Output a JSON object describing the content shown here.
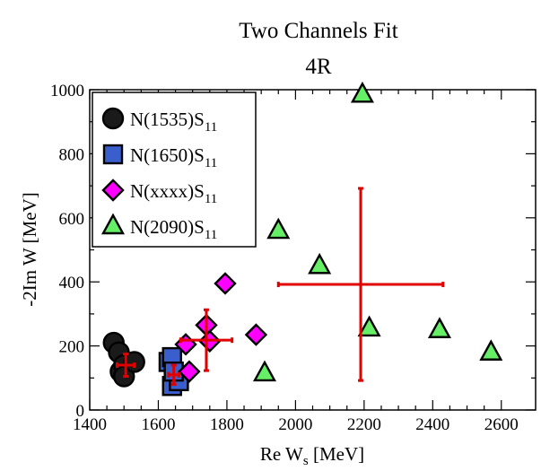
{
  "chart_data": {
    "type": "scatter",
    "title": "Two Channels Fit",
    "subtitle": "4R",
    "xlabel": {
      "main": "Re W",
      "sub": "s",
      "unit": " [MeV]"
    },
    "ylabel": "-2Im W [MeV]",
    "xlim": [
      1400,
      2700
    ],
    "ylim": [
      0,
      1000
    ],
    "xticks": [
      1400,
      1600,
      1800,
      2000,
      2200,
      2400,
      2600
    ],
    "yticks": [
      0,
      200,
      400,
      600,
      800,
      1000
    ],
    "grid": false,
    "legend_position": "top-left",
    "series": [
      {
        "name": "N(1535)S",
        "name_sub": "11",
        "marker": "circle",
        "fill": "#1a1a1a",
        "points": [
          {
            "x": 1470,
            "y": 210
          },
          {
            "x": 1485,
            "y": 180
          },
          {
            "x": 1490,
            "y": 120
          },
          {
            "x": 1500,
            "y": 140
          },
          {
            "x": 1500,
            "y": 105
          },
          {
            "x": 1530,
            "y": 150
          }
        ]
      },
      {
        "name": "N(1650)S",
        "name_sub": "11",
        "marker": "square",
        "fill": "#3a5fcd",
        "points": [
          {
            "x": 1630,
            "y": 150
          },
          {
            "x": 1640,
            "y": 165
          },
          {
            "x": 1640,
            "y": 75
          },
          {
            "x": 1660,
            "y": 90
          },
          {
            "x": 1645,
            "y": 120
          }
        ]
      },
      {
        "name": "N(xxxx)S",
        "name_sub": "11",
        "marker": "diamond",
        "fill": "#ff00ff",
        "points": [
          {
            "x": 1680,
            "y": 205
          },
          {
            "x": 1690,
            "y": 120
          },
          {
            "x": 1740,
            "y": 265
          },
          {
            "x": 1750,
            "y": 215
          },
          {
            "x": 1795,
            "y": 395
          },
          {
            "x": 1885,
            "y": 235
          }
        ]
      },
      {
        "name": "N(2090)S",
        "name_sub": "11",
        "marker": "triangle",
        "fill": "#66ee66",
        "points": [
          {
            "x": 2195,
            "y": 985
          },
          {
            "x": 1950,
            "y": 560
          },
          {
            "x": 2070,
            "y": 450
          },
          {
            "x": 2215,
            "y": 255
          },
          {
            "x": 2420,
            "y": 250
          },
          {
            "x": 2570,
            "y": 180
          },
          {
            "x": 1910,
            "y": 115
          }
        ]
      }
    ],
    "error_bars": {
      "color": "#e00000",
      "points": [
        {
          "x": 1505,
          "y": 140,
          "xerr": 25,
          "yerr": 35
        },
        {
          "x": 1645,
          "y": 110,
          "xerr": 15,
          "yerr": 30
        },
        {
          "x": 1740,
          "y": 218,
          "xerr": 75,
          "yerr": 95
        },
        {
          "x": 2190,
          "y": 392,
          "xerr": 240,
          "yerr": 300
        }
      ]
    }
  }
}
